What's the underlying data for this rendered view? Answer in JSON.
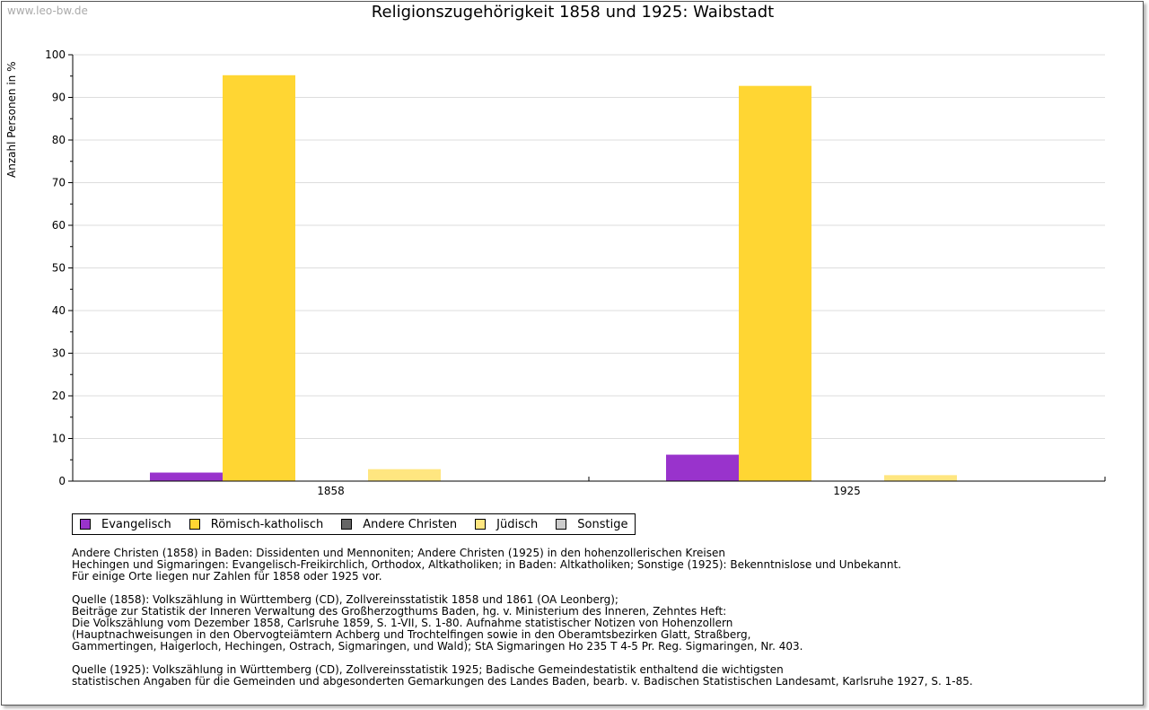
{
  "watermark": "www.leo-bw.de",
  "chart_data": {
    "type": "bar",
    "title": "Religionszugehörigkeit 1858 und 1925: Waibstadt",
    "xlabel": "",
    "ylabel": "Anzahl Personen in %",
    "ylim": [
      0,
      100
    ],
    "yticks": [
      0,
      10,
      20,
      30,
      40,
      50,
      60,
      70,
      80,
      90,
      100
    ],
    "grid": true,
    "legend_position": "bottom-left",
    "categories": [
      "1858",
      "1925"
    ],
    "series": [
      {
        "name": "Evangelisch",
        "color": "#9933cc",
        "values": [
          2.0,
          6.2
        ]
      },
      {
        "name": "Römisch-katholisch",
        "color": "#ffd633",
        "values": [
          95.2,
          92.7
        ]
      },
      {
        "name": "Andere Christen",
        "color": "#666666",
        "values": [
          0,
          0
        ]
      },
      {
        "name": "Jüdisch",
        "color": "#ffe680",
        "values": [
          2.8,
          1.4
        ]
      },
      {
        "name": "Sonstige",
        "color": "#cccccc",
        "values": [
          0,
          0
        ]
      }
    ]
  },
  "notes": [
    [
      "Andere Christen (1858) in Baden: Dissidenten und Mennoniten; Andere Christen (1925) in den hohenzollerischen Kreisen",
      "Hechingen und Sigmaringen: Evangelisch-Freikirchlich, Orthodox, Altkatholiken; in Baden: Altkatholiken; Sonstige (1925): Bekenntnislose und Unbekannt.",
      "Für einige Orte liegen nur Zahlen für 1858 oder 1925 vor."
    ],
    [
      "Quelle (1858): Volkszählung in Württemberg (CD), Zollvereinsstatistik 1858 und 1861 (OA Leonberg);",
      "Beiträge zur Statistik der Inneren Verwaltung des Großherzogthums Baden, hg. v. Ministerium des Inneren, Zehntes Heft:",
      "Die Volkszählung vom Dezember 1858, Carlsruhe 1859, S. 1-VII, S. 1-80. Aufnahme statistischer Notizen von Hohenzollern",
      "(Hauptnachweisungen in den Obervogteiämtern Achberg und Trochtelfingen sowie in den Oberamtsbezirken Glatt, Straßberg,",
      "Gammertingen, Haigerloch, Hechingen, Ostrach, Sigmaringen, und Wald); StA Sigmaringen Ho 235 T 4-5 Pr. Reg. Sigmaringen, Nr. 403."
    ],
    [
      "Quelle (1925): Volkszählung in Württemberg (CD), Zollvereinsstatistik 1925; Badische Gemeindestatistik enthaltend die wichtigsten",
      "statistischen Angaben für die Gemeinden und abgesonderten Gemarkungen des Landes Baden, bearb. v. Badischen Statistischen Landesamt, Karlsruhe 1927, S. 1-85."
    ]
  ]
}
